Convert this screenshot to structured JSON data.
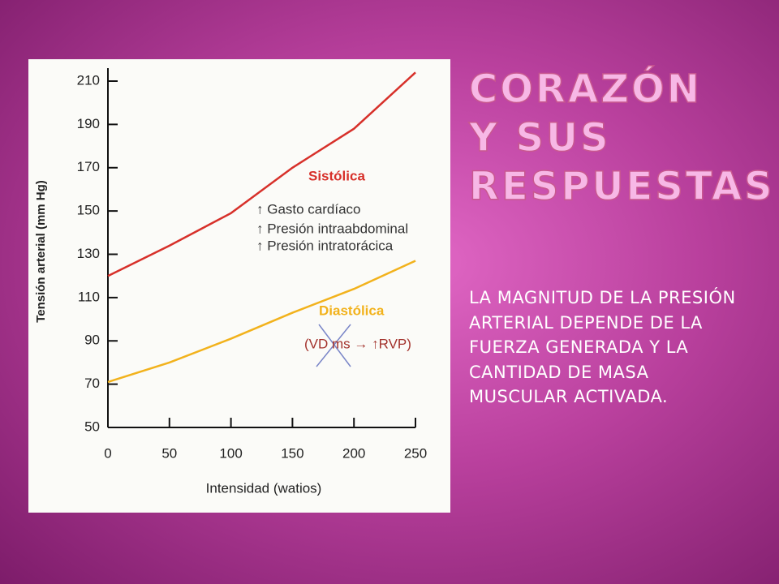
{
  "slide": {
    "title": "CORAZÓN Y SUS RESPUESTAS",
    "body": "LA MAGNITUD DE LA PRESIÓN ARTERIAL DEPENDE DE LA FUERZA GENERADA Y LA CANTIDAD DE MASA MUSCULAR ACTIVADA."
  },
  "chart_data": {
    "type": "line",
    "x_label": "Intensidad (watios)",
    "y_label": "Tensión arterial (mm Hg)",
    "x": [
      0,
      50,
      100,
      150,
      200,
      250
    ],
    "series": [
      {
        "name": "Sistólica",
        "color": "#d7302a",
        "values": [
          120,
          134,
          149,
          170,
          188,
          214
        ]
      },
      {
        "name": "Diastólica",
        "color": "#f2b21c",
        "values": [
          71,
          80,
          91,
          103,
          114,
          127
        ]
      }
    ],
    "annotations": [
      "↑ Gasto cardíaco",
      "↑ Presión intraabdominal",
      "↑ Presión intratorácica",
      "(VD ms → ↑RVP)"
    ],
    "xlim": [
      0,
      250
    ],
    "xticks": [
      0,
      50,
      100,
      150,
      200,
      250
    ],
    "ylim": [
      50,
      216
    ],
    "yticks": [
      50,
      70,
      90,
      110,
      130,
      150,
      170,
      190,
      210
    ]
  }
}
